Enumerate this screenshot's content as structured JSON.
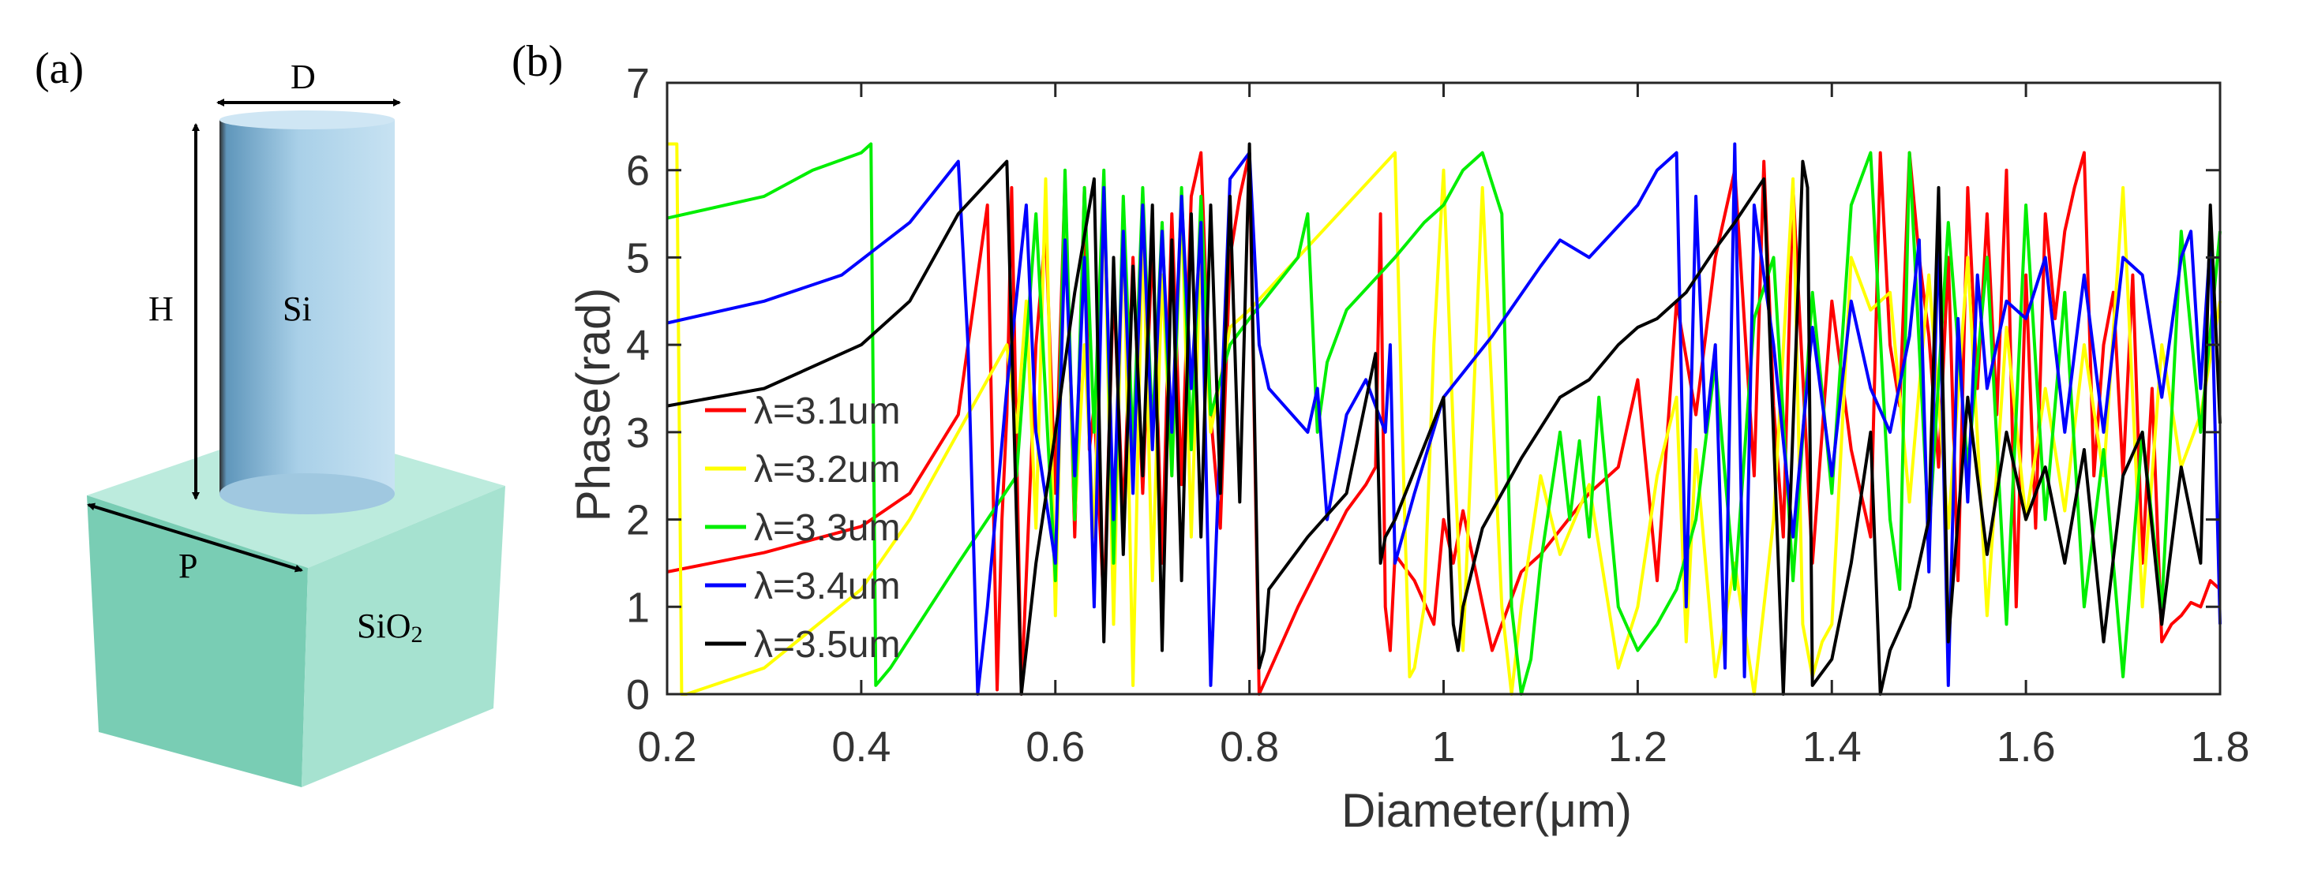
{
  "panels": {
    "a": {
      "label": "(a)",
      "labels": {
        "diameter": "D",
        "height": "H",
        "pillar": "Si",
        "period": "P",
        "substrate_main": "SiO",
        "substrate_sub": "2"
      },
      "colors": {
        "pillar_light": "#a9d0e8",
        "pillar_dark": "#5f96bb",
        "block_front": "#86d4bd",
        "block_side": "#a9e3d2",
        "block_top": "#bcebdd"
      }
    },
    "b": {
      "label": "(b)"
    }
  },
  "chart_data": {
    "type": "line",
    "title": "",
    "xlabel": "Diameter(μm)",
    "ylabel": "Phase(rad)",
    "xlim": [
      0.2,
      1.8
    ],
    "ylim": [
      0,
      7
    ],
    "xticks": [
      0.2,
      0.4,
      0.6,
      0.8,
      1,
      1.2,
      1.4,
      1.6,
      1.8
    ],
    "yticks": [
      0,
      1,
      2,
      3,
      4,
      5,
      6,
      7
    ],
    "grid": false,
    "legend_position": "left-center",
    "series": [
      {
        "name": "λ=3.1um",
        "color": "#ff0000",
        "x": [
          0.2,
          0.3,
          0.4,
          0.45,
          0.5,
          0.53,
          0.54,
          0.545,
          0.55,
          0.555,
          0.565,
          0.58,
          0.59,
          0.6,
          0.61,
          0.62,
          0.63,
          0.635,
          0.64,
          0.65,
          0.66,
          0.67,
          0.68,
          0.69,
          0.7,
          0.71,
          0.72,
          0.73,
          0.74,
          0.75,
          0.76,
          0.77,
          0.78,
          0.79,
          0.8,
          0.81,
          0.85,
          0.9,
          0.92,
          0.93,
          0.935,
          0.94,
          0.945,
          0.95,
          0.97,
          0.99,
          1.0,
          1.01,
          1.02,
          1.05,
          1.08,
          1.1,
          1.15,
          1.18,
          1.2,
          1.22,
          1.24,
          1.26,
          1.28,
          1.3,
          1.32,
          1.33,
          1.34,
          1.35,
          1.36,
          1.38,
          1.4,
          1.42,
          1.44,
          1.45,
          1.46,
          1.47,
          1.48,
          1.49,
          1.5,
          1.51,
          1.52,
          1.53,
          1.54,
          1.55,
          1.56,
          1.57,
          1.58,
          1.59,
          1.6,
          1.61,
          1.62,
          1.63,
          1.64,
          1.65,
          1.66,
          1.67,
          1.68,
          1.69,
          1.7,
          1.71,
          1.72,
          1.73,
          1.74,
          1.75,
          1.76,
          1.77,
          1.78,
          1.79,
          1.8
        ],
        "y": [
          1.4,
          1.62,
          1.92,
          2.3,
          3.2,
          5.6,
          0.05,
          2.0,
          3.2,
          5.8,
          0.0,
          4.0,
          5.3,
          2.3,
          5.9,
          1.8,
          5.8,
          2.8,
          3.3,
          1.0,
          4.7,
          2.0,
          5.0,
          2.3,
          5.2,
          1.5,
          5.5,
          2.4,
          5.7,
          6.2,
          3.2,
          1.9,
          5.0,
          5.7,
          6.2,
          0.0,
          1.0,
          2.1,
          2.4,
          2.6,
          5.5,
          1.0,
          0.5,
          1.6,
          1.3,
          0.8,
          2.0,
          1.5,
          2.1,
          0.5,
          1.4,
          1.6,
          2.3,
          2.6,
          3.6,
          1.3,
          4.5,
          3.2,
          5.0,
          6.0,
          2.5,
          6.1,
          3.3,
          1.8,
          5.8,
          1.5,
          4.5,
          2.8,
          1.8,
          6.2,
          4.0,
          3.3,
          6.2,
          5.0,
          4.1,
          2.6,
          5.0,
          1.3,
          5.8,
          3.5,
          5.5,
          3.2,
          6.0,
          1.0,
          4.8,
          1.9,
          5.5,
          4.3,
          5.3,
          5.8,
          6.2,
          2.5,
          4.0,
          4.6,
          2.5,
          4.8,
          1.5,
          3.5,
          0.6,
          0.8,
          0.9,
          1.05,
          1.0,
          1.3,
          1.2
        ]
      },
      {
        "name": "λ=3.2um",
        "color": "#ffff00",
        "x": [
          0.2,
          0.21,
          0.215,
          0.22,
          0.3,
          0.4,
          0.45,
          0.5,
          0.55,
          0.56,
          0.57,
          0.58,
          0.59,
          0.6,
          0.61,
          0.62,
          0.63,
          0.64,
          0.65,
          0.66,
          0.67,
          0.68,
          0.69,
          0.7,
          0.71,
          0.72,
          0.73,
          0.74,
          0.75,
          0.76,
          0.78,
          0.8,
          0.85,
          0.9,
          0.95,
          0.96,
          0.965,
          0.97,
          0.98,
          0.99,
          1.0,
          1.01,
          1.02,
          1.04,
          1.06,
          1.07,
          1.08,
          1.1,
          1.12,
          1.15,
          1.18,
          1.2,
          1.22,
          1.24,
          1.25,
          1.26,
          1.28,
          1.3,
          1.32,
          1.34,
          1.36,
          1.37,
          1.38,
          1.39,
          1.4,
          1.42,
          1.44,
          1.46,
          1.48,
          1.5,
          1.52,
          1.54,
          1.56,
          1.58,
          1.6,
          1.62,
          1.64,
          1.66,
          1.68,
          1.7,
          1.72,
          1.74,
          1.76,
          1.78,
          1.8
        ],
        "y": [
          6.3,
          6.3,
          0.0,
          0.0,
          0.3,
          1.2,
          2.0,
          3.0,
          4.0,
          3.0,
          4.5,
          1.9,
          5.9,
          0.9,
          5.6,
          2.0,
          4.0,
          1.8,
          5.8,
          0.8,
          5.5,
          0.1,
          5.4,
          1.3,
          4.8,
          2.5,
          5.6,
          1.8,
          5.2,
          3.0,
          4.2,
          4.4,
          5.0,
          5.6,
          6.2,
          2.0,
          0.2,
          0.3,
          1.0,
          4.0,
          6.0,
          3.0,
          0.5,
          5.8,
          1.0,
          0.0,
          1.0,
          2.5,
          1.6,
          2.4,
          0.3,
          1.0,
          2.5,
          3.4,
          0.6,
          2.8,
          0.2,
          1.5,
          0.0,
          2.0,
          5.9,
          0.8,
          0.2,
          0.6,
          0.8,
          5.0,
          4.4,
          4.6,
          2.2,
          4.8,
          1.9,
          5.0,
          0.9,
          4.2,
          2.0,
          3.5,
          2.1,
          4.0,
          2.5,
          5.8,
          1.0,
          4.0,
          2.6,
          3.2,
          4.5
        ]
      },
      {
        "name": "λ=3.3um",
        "color": "#00ee00",
        "x": [
          0.2,
          0.3,
          0.35,
          0.4,
          0.41,
          0.415,
          0.43,
          0.5,
          0.56,
          0.58,
          0.6,
          0.61,
          0.62,
          0.63,
          0.64,
          0.65,
          0.66,
          0.67,
          0.68,
          0.69,
          0.7,
          0.71,
          0.72,
          0.73,
          0.74,
          0.75,
          0.76,
          0.78,
          0.8,
          0.85,
          0.86,
          0.87,
          0.88,
          0.9,
          0.95,
          0.98,
          1.0,
          1.02,
          1.04,
          1.06,
          1.07,
          1.08,
          1.09,
          1.1,
          1.12,
          1.13,
          1.14,
          1.15,
          1.16,
          1.18,
          1.2,
          1.22,
          1.24,
          1.26,
          1.28,
          1.3,
          1.32,
          1.34,
          1.36,
          1.38,
          1.4,
          1.42,
          1.44,
          1.46,
          1.47,
          1.48,
          1.5,
          1.52,
          1.54,
          1.56,
          1.58,
          1.6,
          1.62,
          1.64,
          1.66,
          1.68,
          1.7,
          1.72,
          1.74,
          1.76,
          1.78,
          1.8
        ],
        "y": [
          5.45,
          5.7,
          6.0,
          6.2,
          6.3,
          0.1,
          0.3,
          1.5,
          2.5,
          5.5,
          1.3,
          6.0,
          2.0,
          5.8,
          3.0,
          6.0,
          1.5,
          5.7,
          2.8,
          5.8,
          3.0,
          5.4,
          2.5,
          5.8,
          2.8,
          5.7,
          3.2,
          4.0,
          4.3,
          5.0,
          5.5,
          3.0,
          3.8,
          4.4,
          5.0,
          5.4,
          5.6,
          6.0,
          6.2,
          5.5,
          1.0,
          0.0,
          0.4,
          1.5,
          3.0,
          2.0,
          2.9,
          1.8,
          3.4,
          1.0,
          0.5,
          0.8,
          1.2,
          2.0,
          3.8,
          1.2,
          4.3,
          5.0,
          1.3,
          4.6,
          2.3,
          5.6,
          6.2,
          2.0,
          1.2,
          6.2,
          1.8,
          5.4,
          2.6,
          5.0,
          0.8,
          5.6,
          2.0,
          4.6,
          1.0,
          2.8,
          0.2,
          3.0,
          1.0,
          5.3,
          3.0,
          5.3
        ]
      },
      {
        "name": "λ=3.4um",
        "color": "#0000ff",
        "x": [
          0.2,
          0.3,
          0.38,
          0.45,
          0.5,
          0.51,
          0.52,
          0.53,
          0.55,
          0.57,
          0.58,
          0.6,
          0.61,
          0.62,
          0.63,
          0.64,
          0.65,
          0.66,
          0.67,
          0.68,
          0.69,
          0.7,
          0.71,
          0.72,
          0.73,
          0.74,
          0.75,
          0.76,
          0.78,
          0.8,
          0.81,
          0.82,
          0.86,
          0.87,
          0.88,
          0.9,
          0.92,
          0.94,
          0.945,
          0.95,
          0.97,
          1.0,
          1.05,
          1.1,
          1.12,
          1.15,
          1.2,
          1.22,
          1.24,
          1.25,
          1.26,
          1.27,
          1.28,
          1.29,
          1.3,
          1.31,
          1.32,
          1.34,
          1.36,
          1.38,
          1.4,
          1.42,
          1.44,
          1.46,
          1.48,
          1.49,
          1.5,
          1.51,
          1.52,
          1.53,
          1.54,
          1.55,
          1.56,
          1.58,
          1.6,
          1.62,
          1.64,
          1.66,
          1.68,
          1.7,
          1.72,
          1.74,
          1.76,
          1.77,
          1.78,
          1.79,
          1.8
        ],
        "y": [
          4.25,
          4.5,
          4.8,
          5.4,
          6.1,
          4.0,
          0.0,
          1.0,
          3.5,
          5.6,
          3.0,
          1.5,
          5.2,
          2.5,
          5.0,
          1.0,
          5.8,
          2.0,
          5.3,
          2.3,
          5.6,
          2.8,
          5.3,
          3.0,
          5.7,
          3.5,
          5.4,
          0.1,
          5.9,
          6.2,
          4.0,
          3.5,
          3.0,
          3.5,
          2.0,
          3.2,
          3.6,
          3.0,
          4.0,
          1.5,
          2.3,
          3.4,
          4.1,
          4.9,
          5.2,
          5.0,
          5.6,
          6.0,
          6.2,
          1.0,
          5.7,
          3.0,
          4.0,
          0.3,
          6.3,
          0.2,
          5.6,
          4.0,
          1.8,
          4.2,
          2.5,
          4.5,
          3.5,
          3.0,
          4.1,
          5.2,
          1.4,
          5.3,
          0.1,
          4.3,
          2.2,
          4.8,
          3.5,
          4.5,
          4.3,
          5.0,
          3.0,
          4.8,
          3.0,
          5.0,
          4.8,
          3.4,
          5.0,
          5.3,
          3.5,
          5.2,
          0.8
        ]
      },
      {
        "name": "λ=3.5um",
        "color": "#000000",
        "x": [
          0.2,
          0.3,
          0.4,
          0.45,
          0.5,
          0.55,
          0.56,
          0.565,
          0.57,
          0.58,
          0.6,
          0.62,
          0.64,
          0.65,
          0.66,
          0.67,
          0.68,
          0.69,
          0.7,
          0.71,
          0.72,
          0.73,
          0.74,
          0.75,
          0.76,
          0.77,
          0.78,
          0.79,
          0.8,
          0.81,
          0.815,
          0.82,
          0.86,
          0.9,
          0.93,
          0.935,
          0.94,
          0.95,
          1.0,
          1.01,
          1.015,
          1.02,
          1.04,
          1.08,
          1.12,
          1.15,
          1.18,
          1.2,
          1.22,
          1.25,
          1.28,
          1.3,
          1.33,
          1.35,
          1.37,
          1.375,
          1.38,
          1.4,
          1.42,
          1.44,
          1.45,
          1.46,
          1.48,
          1.5,
          1.51,
          1.52,
          1.54,
          1.56,
          1.58,
          1.6,
          1.62,
          1.64,
          1.66,
          1.68,
          1.7,
          1.72,
          1.74,
          1.76,
          1.78,
          1.79,
          1.8
        ],
        "y": [
          3.3,
          3.5,
          4.0,
          4.5,
          5.5,
          6.1,
          2.0,
          0.0,
          0.5,
          1.5,
          3.0,
          4.6,
          5.9,
          0.6,
          5.0,
          1.6,
          4.9,
          2.5,
          5.6,
          0.5,
          5.2,
          1.3,
          5.5,
          1.8,
          5.6,
          2.3,
          5.7,
          2.2,
          6.3,
          0.3,
          0.5,
          1.2,
          1.8,
          2.3,
          3.9,
          1.5,
          1.8,
          2.0,
          3.4,
          0.8,
          0.5,
          1.0,
          1.9,
          2.7,
          3.4,
          3.6,
          4.0,
          4.2,
          4.3,
          4.6,
          5.1,
          5.4,
          5.9,
          0.0,
          6.1,
          5.8,
          0.1,
          0.4,
          1.5,
          3.0,
          0.0,
          0.5,
          1.0,
          2.0,
          5.8,
          0.6,
          3.4,
          1.6,
          3.0,
          2.0,
          2.6,
          1.5,
          2.8,
          0.6,
          2.5,
          3.0,
          0.8,
          2.6,
          1.5,
          5.6,
          3.1
        ]
      }
    ]
  }
}
